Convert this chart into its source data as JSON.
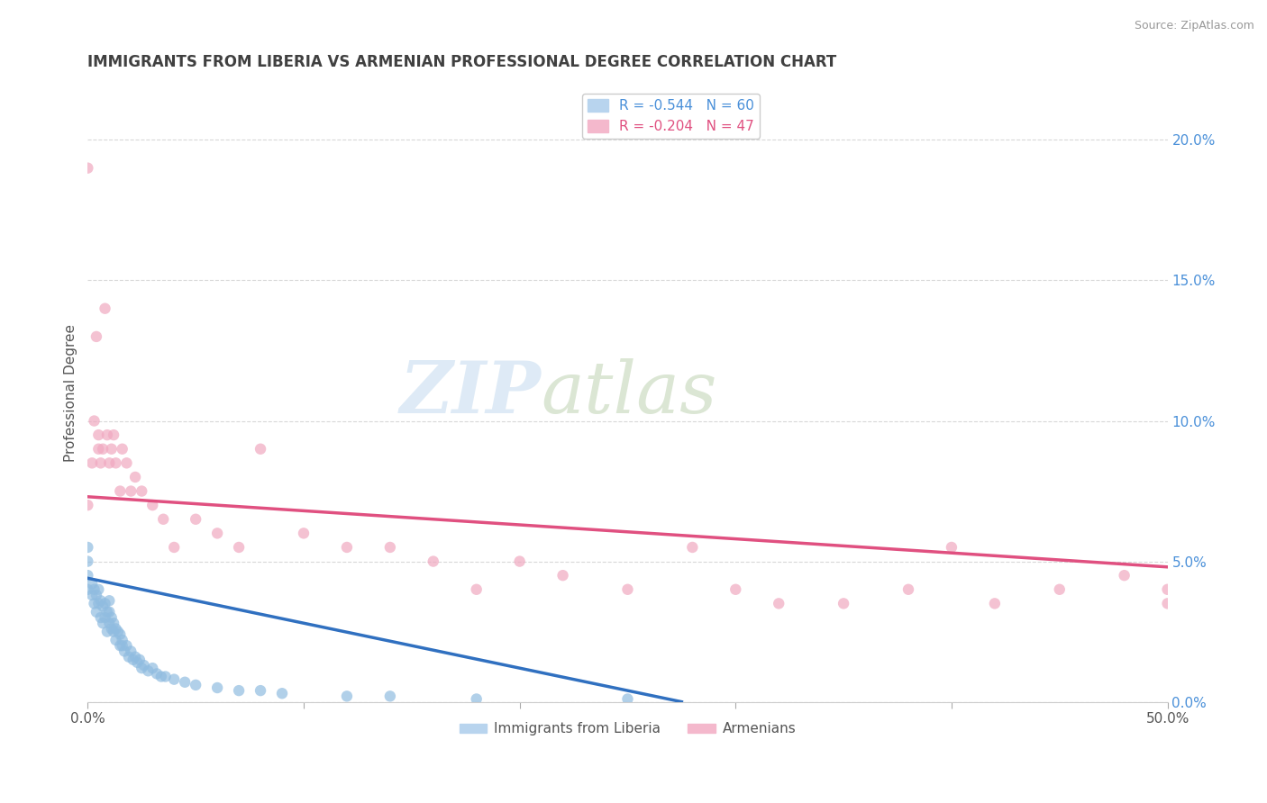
{
  "title": "IMMIGRANTS FROM LIBERIA VS ARMENIAN PROFESSIONAL DEGREE CORRELATION CHART",
  "source": "Source: ZipAtlas.com",
  "ylabel": "Professional Degree",
  "watermark_zip": "ZIP",
  "watermark_atlas": "atlas",
  "legend_entries": [
    {
      "label": "R = -0.544   N = 60",
      "color": "#b8d4ee"
    },
    {
      "label": "R = -0.204   N = 47",
      "color": "#f4b8cc"
    }
  ],
  "legend_labels": [
    "Immigrants from Liberia",
    "Armenians"
  ],
  "xlim": [
    0.0,
    0.5
  ],
  "ylim": [
    0.0,
    0.22
  ],
  "right_yticks": [
    0.0,
    0.05,
    0.1,
    0.15,
    0.2
  ],
  "right_yticklabels": [
    "0.0%",
    "5.0%",
    "10.0%",
    "15.0%",
    "20.0%"
  ],
  "xticks": [
    0.0,
    0.1,
    0.2,
    0.3,
    0.4,
    0.5
  ],
  "xticklabels_edge": [
    "0.0%",
    "",
    "",
    "",
    "",
    "50.0%"
  ],
  "background_color": "#ffffff",
  "grid_color": "#d8d8d8",
  "title_color": "#404040",
  "source_color": "#999999",
  "blue_scatter_color": "#90bce0",
  "pink_scatter_color": "#f0a8c0",
  "blue_line_color": "#3070c0",
  "pink_line_color": "#e05080",
  "blue_legend_color": "#b8d4ee",
  "pink_legend_color": "#f4b8cc",
  "scatter_size": 80,
  "scatter_alpha": 0.7,
  "blue_points_x": [
    0.0,
    0.0,
    0.0,
    0.0,
    0.002,
    0.002,
    0.003,
    0.003,
    0.004,
    0.004,
    0.005,
    0.005,
    0.006,
    0.006,
    0.007,
    0.007,
    0.008,
    0.008,
    0.009,
    0.009,
    0.01,
    0.01,
    0.01,
    0.011,
    0.011,
    0.012,
    0.012,
    0.013,
    0.013,
    0.014,
    0.015,
    0.015,
    0.016,
    0.016,
    0.017,
    0.018,
    0.019,
    0.02,
    0.021,
    0.022,
    0.023,
    0.024,
    0.025,
    0.026,
    0.028,
    0.03,
    0.032,
    0.034,
    0.036,
    0.04,
    0.045,
    0.05,
    0.06,
    0.07,
    0.08,
    0.09,
    0.12,
    0.14,
    0.18,
    0.25
  ],
  "blue_points_y": [
    0.04,
    0.045,
    0.05,
    0.055,
    0.038,
    0.042,
    0.035,
    0.04,
    0.032,
    0.038,
    0.035,
    0.04,
    0.03,
    0.036,
    0.028,
    0.034,
    0.03,
    0.035,
    0.025,
    0.032,
    0.028,
    0.032,
    0.036,
    0.026,
    0.03,
    0.025,
    0.028,
    0.022,
    0.026,
    0.025,
    0.02,
    0.024,
    0.02,
    0.022,
    0.018,
    0.02,
    0.016,
    0.018,
    0.015,
    0.016,
    0.014,
    0.015,
    0.012,
    0.013,
    0.011,
    0.012,
    0.01,
    0.009,
    0.009,
    0.008,
    0.007,
    0.006,
    0.005,
    0.004,
    0.004,
    0.003,
    0.002,
    0.002,
    0.001,
    0.001
  ],
  "pink_points_x": [
    0.0,
    0.0,
    0.002,
    0.003,
    0.004,
    0.005,
    0.005,
    0.006,
    0.007,
    0.008,
    0.009,
    0.01,
    0.011,
    0.012,
    0.013,
    0.015,
    0.016,
    0.018,
    0.02,
    0.022,
    0.025,
    0.03,
    0.035,
    0.04,
    0.05,
    0.06,
    0.07,
    0.08,
    0.1,
    0.12,
    0.14,
    0.16,
    0.18,
    0.2,
    0.22,
    0.25,
    0.28,
    0.3,
    0.32,
    0.35,
    0.38,
    0.4,
    0.42,
    0.45,
    0.48,
    0.5,
    0.5
  ],
  "pink_points_y": [
    0.07,
    0.19,
    0.085,
    0.1,
    0.13,
    0.09,
    0.095,
    0.085,
    0.09,
    0.14,
    0.095,
    0.085,
    0.09,
    0.095,
    0.085,
    0.075,
    0.09,
    0.085,
    0.075,
    0.08,
    0.075,
    0.07,
    0.065,
    0.055,
    0.065,
    0.06,
    0.055,
    0.09,
    0.06,
    0.055,
    0.055,
    0.05,
    0.04,
    0.05,
    0.045,
    0.04,
    0.055,
    0.04,
    0.035,
    0.035,
    0.04,
    0.055,
    0.035,
    0.04,
    0.045,
    0.035,
    0.04
  ],
  "blue_trend_x": [
    0.0,
    0.275
  ],
  "blue_trend_y": [
    0.044,
    0.0
  ],
  "pink_trend_x": [
    0.0,
    0.5
  ],
  "pink_trend_y": [
    0.073,
    0.048
  ]
}
